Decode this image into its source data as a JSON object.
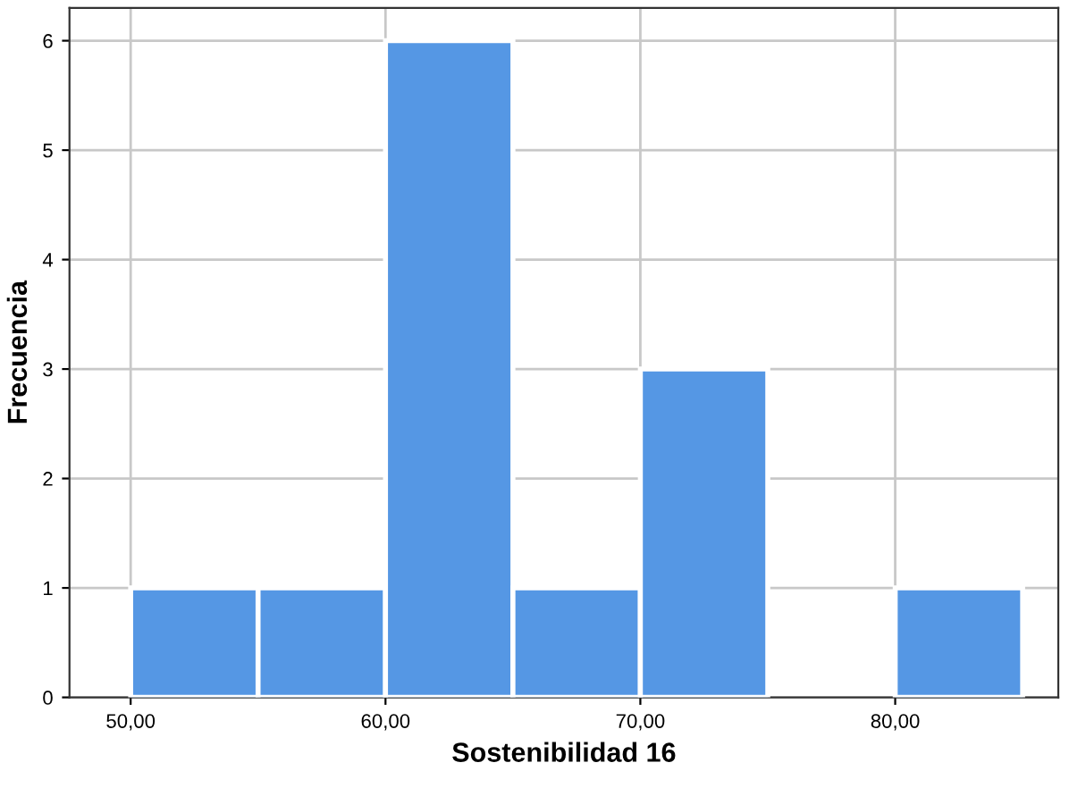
{
  "chart_data": {
    "type": "histogram",
    "xlabel": "Sostenibilidad 16",
    "ylabel": "Frecuencia",
    "bins": [
      50,
      55,
      60,
      65,
      70,
      75,
      80,
      85
    ],
    "values": [
      1,
      1,
      6,
      1,
      3,
      0,
      1
    ],
    "color": "#5597e4",
    "xlim": [
      47.6,
      86.4
    ],
    "ylim": [
      0,
      6.3
    ],
    "xticks": [
      {
        "value": 50,
        "label": "50,00"
      },
      {
        "value": 60,
        "label": "60,00"
      },
      {
        "value": 70,
        "label": "70,00"
      },
      {
        "value": 80,
        "label": "80,00"
      }
    ],
    "yticks": [
      0,
      1,
      2,
      3,
      4,
      5,
      6
    ],
    "grid": true
  }
}
